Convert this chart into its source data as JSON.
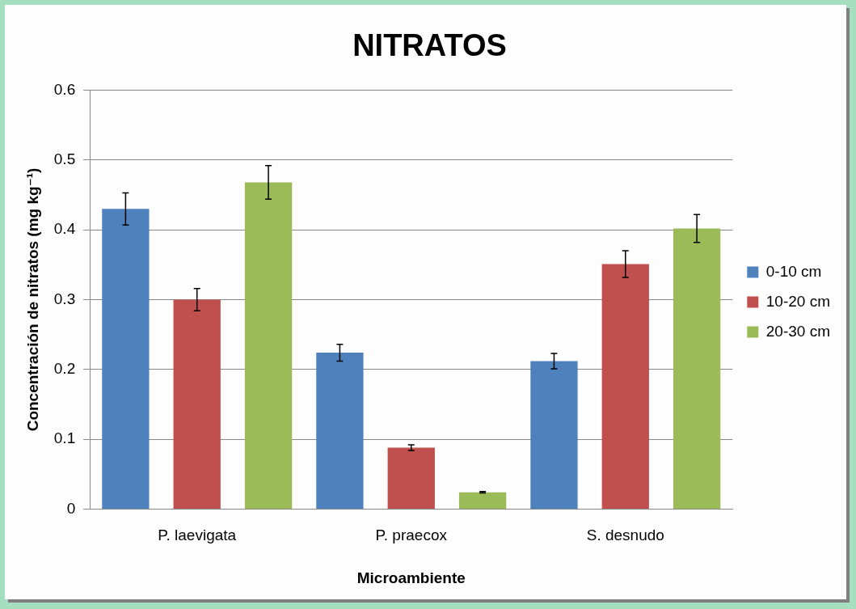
{
  "chart_data": {
    "type": "bar",
    "title": "NITRATOS",
    "xlabel": "Microambiente",
    "ylabel": "Concentración de nitratos (mg kg⁻¹)",
    "categories": [
      "P. laevigata",
      "P. praecox",
      "S. desnudo"
    ],
    "series": [
      {
        "name": "0-10 cm",
        "color": "#4f81bd",
        "values": [
          0.43,
          0.224,
          0.212
        ],
        "errors": [
          0.023,
          0.012,
          0.011
        ]
      },
      {
        "name": "10-20 cm",
        "color": "#c0504d",
        "values": [
          0.3,
          0.088,
          0.351
        ],
        "errors": [
          0.016,
          0.004,
          0.019
        ]
      },
      {
        "name": "20-30 cm",
        "color": "#9bbb59",
        "values": [
          0.468,
          0.024,
          0.402
        ],
        "errors": [
          0.024,
          0.001,
          0.02
        ]
      }
    ],
    "ylim": [
      0,
      0.6
    ],
    "yticks": [
      0,
      0.1,
      0.2,
      0.3,
      0.4,
      0.5,
      0.6
    ],
    "grid": "y",
    "legend": "right"
  }
}
